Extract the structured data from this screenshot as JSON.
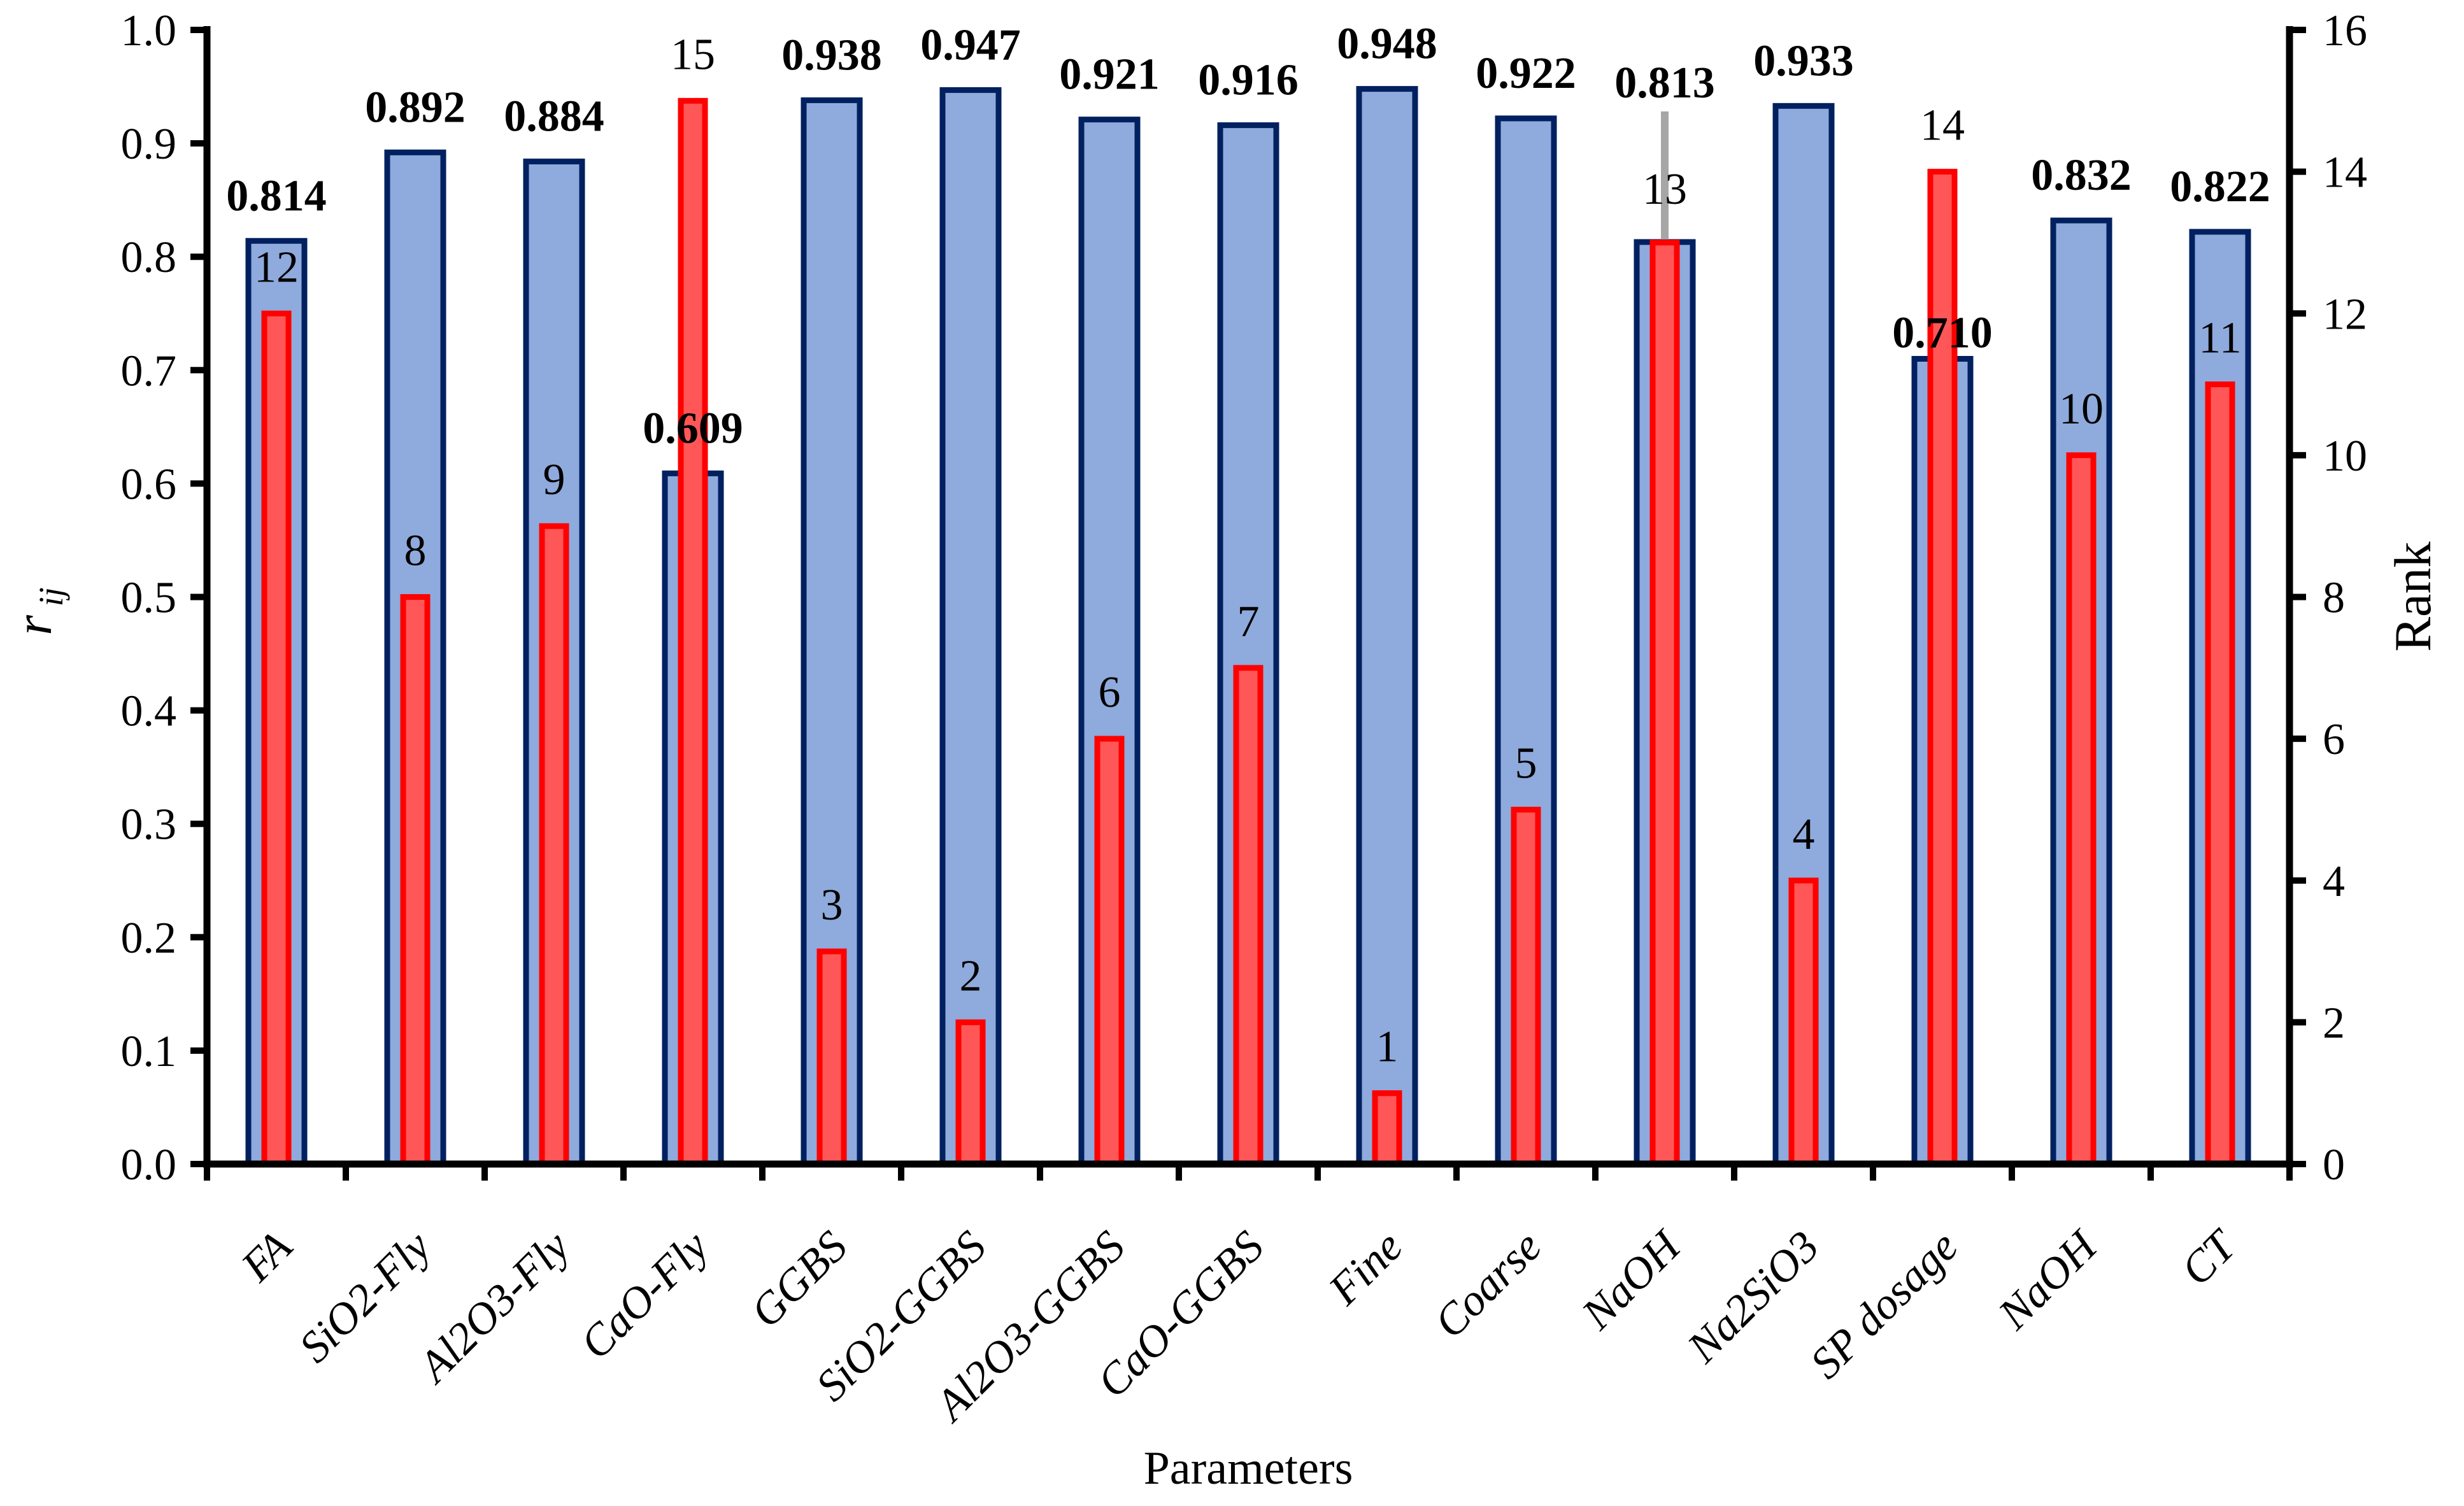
{
  "chart_data": {
    "type": "bar",
    "title": "",
    "xlabel": "Parameters",
    "grid": false,
    "legend": "none",
    "categories": [
      "FA",
      "SiO2-Fly",
      "Al2O3-Fly",
      "CaO-Fly",
      "GGBS",
      "SiO2-GGBS",
      "Al2O3-GGBS",
      "CaO-GGBS",
      "Fine",
      "Coarse",
      "NaOH",
      "Na2SiO3",
      "SP dosage",
      "NaOH",
      "CT"
    ],
    "series": [
      {
        "name": "rij",
        "axis": "left",
        "values": [
          0.814,
          0.892,
          0.884,
          0.609,
          0.938,
          0.947,
          0.921,
          0.916,
          0.948,
          0.922,
          0.813,
          0.933,
          0.71,
          0.832,
          0.822
        ],
        "labels": [
          "0.814",
          "0.892",
          "0.884",
          "0.609",
          "0.938",
          "0.947",
          "0.921",
          "0.916",
          "0.948",
          "0.922",
          "0.813",
          "0.933",
          "0.710",
          "0.832",
          "0.822"
        ],
        "fill": "#8FAADC",
        "stroke": "#002060"
      },
      {
        "name": "Rank",
        "axis": "right",
        "values": [
          12,
          8,
          9,
          15,
          3,
          2,
          6,
          7,
          1,
          5,
          13,
          4,
          14,
          10,
          11
        ],
        "labels": [
          "12",
          "8",
          "9",
          "15",
          "3",
          "2",
          "6",
          "7",
          "1",
          "5",
          "13",
          "4",
          "14",
          "10",
          "11"
        ],
        "fill": "#FF5757",
        "stroke": "#FF0000"
      }
    ],
    "axes": {
      "left": {
        "label": "r",
        "label_subscript": "ij",
        "min": 0.0,
        "max": 1.0,
        "tick_labels": [
          "0.0",
          "0.1",
          "0.2",
          "0.3",
          "0.4",
          "0.5",
          "0.6",
          "0.7",
          "0.8",
          "0.9",
          "1.0"
        ]
      },
      "right": {
        "label": "Rank",
        "min": 0,
        "max": 16,
        "tick_labels": [
          "0",
          "2",
          "4",
          "6",
          "8",
          "10",
          "12",
          "14",
          "16"
        ]
      },
      "bottom": {
        "label": "Parameters"
      }
    },
    "annotations": {
      "leader_line": {
        "category_index": 10,
        "color": "#A6A6A6"
      }
    },
    "colors": {
      "background": "#FFFFFF",
      "text": "#000000",
      "rij_fill": "#8FAADC",
      "rij_stroke": "#002060",
      "rank_fill": "#FF5757",
      "rank_stroke": "#FF0000",
      "leader": "#A6A6A6"
    }
  }
}
